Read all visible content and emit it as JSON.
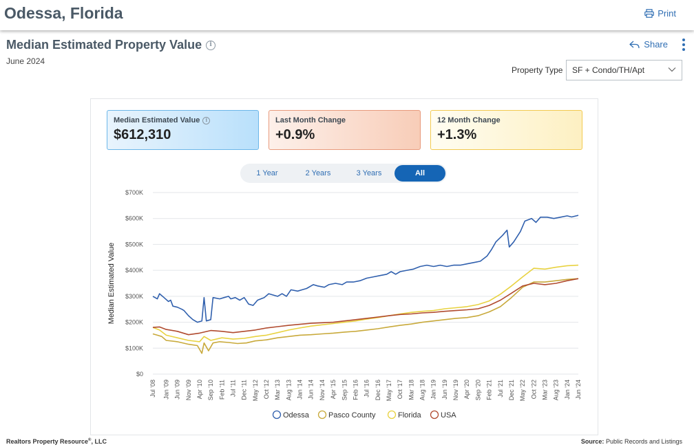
{
  "header": {
    "city": "Odessa, Florida",
    "print_label": "Print"
  },
  "card": {
    "title": "Median Estimated Property Value",
    "date": "June 2024",
    "share_label": "Share",
    "property_type_label": "Property Type",
    "property_type_value": "SF + Condo/TH/Apt"
  },
  "stats": [
    {
      "label": "Median Estimated Value",
      "value": "$612,310"
    },
    {
      "label": "Last Month Change",
      "value": "+0.9%"
    },
    {
      "label": "12 Month Change",
      "value": "+1.3%"
    }
  ],
  "ranges": [
    {
      "label": "1 Year",
      "active": false
    },
    {
      "label": "2 Years",
      "active": false
    },
    {
      "label": "3 Years",
      "active": false
    },
    {
      "label": "All",
      "active": true
    }
  ],
  "footer": {
    "left": "Realtors Property Resource",
    "left_suffix": ", LLC",
    "right_label": "Source:",
    "right_value": "Public Records and Listings"
  },
  "chart_data": {
    "type": "line",
    "ylabel": "Median Estimated Value",
    "ylim": [
      0,
      700000
    ],
    "yticks": [
      0,
      100000,
      200000,
      300000,
      400000,
      500000,
      600000,
      700000
    ],
    "ytick_labels": [
      "$0",
      "$100K",
      "$200K",
      "$300K",
      "$400K",
      "$500K",
      "$600K",
      "$700K"
    ],
    "xlim": [
      "2008-07",
      "2024-06"
    ],
    "xticks": [
      "2008-07",
      "2009-01",
      "2009-06",
      "2009-11",
      "2010-04",
      "2010-09",
      "2011-02",
      "2011-07",
      "2011-12",
      "2012-05",
      "2012-10",
      "2013-03",
      "2013-08",
      "2014-01",
      "2014-06",
      "2014-11",
      "2015-04",
      "2015-09",
      "2016-02",
      "2016-07",
      "2016-12",
      "2017-05",
      "2017-10",
      "2018-03",
      "2018-08",
      "2019-01",
      "2019-06",
      "2019-11",
      "2020-04",
      "2020-09",
      "2021-02",
      "2021-07",
      "2021-12",
      "2022-05",
      "2022-10",
      "2023-03",
      "2023-08",
      "2024-01",
      "2024-06"
    ],
    "xtick_labels": [
      "Jul '08",
      "Jan '09",
      "Jun '09",
      "Nov '09",
      "Apr '10",
      "Sep '10",
      "Feb '11",
      "Jul '11",
      "Dec '11",
      "May '12",
      "Oct '12",
      "Mar '13",
      "Aug '13",
      "Jan '14",
      "Jun '14",
      "Nov '14",
      "Apr '15",
      "Sep '15",
      "Feb '16",
      "Jul '16",
      "Dec '16",
      "May '17",
      "Oct '17",
      "Mar '18",
      "Aug '18",
      "Jan '19",
      "Jun '19",
      "Nov '19",
      "Apr '20",
      "Sep '20",
      "Feb '21",
      "Jul '21",
      "Dec '21",
      "May '22",
      "Oct '22",
      "Mar '23",
      "Aug '23",
      "Jan '24",
      "Jun '24"
    ],
    "grid": true,
    "legend_position": "bottom",
    "series": [
      {
        "name": "Odessa",
        "color": "#2f5fad",
        "points": [
          [
            "2008-07",
            300000
          ],
          [
            "2008-09",
            290000
          ],
          [
            "2008-10",
            310000
          ],
          [
            "2008-12",
            295000
          ],
          [
            "2009-02",
            280000
          ],
          [
            "2009-03",
            285000
          ],
          [
            "2009-04",
            262000
          ],
          [
            "2009-06",
            258000
          ],
          [
            "2009-08",
            250000
          ],
          [
            "2009-09",
            245000
          ],
          [
            "2009-11",
            225000
          ],
          [
            "2010-01",
            210000
          ],
          [
            "2010-03",
            200000
          ],
          [
            "2010-05",
            205000
          ],
          [
            "2010-06",
            295000
          ],
          [
            "2010-07",
            205000
          ],
          [
            "2010-09",
            210000
          ],
          [
            "2010-10",
            295000
          ],
          [
            "2011-01",
            290000
          ],
          [
            "2011-03",
            295000
          ],
          [
            "2011-05",
            300000
          ],
          [
            "2011-06",
            290000
          ],
          [
            "2011-08",
            295000
          ],
          [
            "2011-10",
            285000
          ],
          [
            "2011-12",
            295000
          ],
          [
            "2012-02",
            270000
          ],
          [
            "2012-04",
            265000
          ],
          [
            "2012-06",
            285000
          ],
          [
            "2012-09",
            295000
          ],
          [
            "2012-11",
            310000
          ],
          [
            "2013-01",
            305000
          ],
          [
            "2013-03",
            300000
          ],
          [
            "2013-05",
            310000
          ],
          [
            "2013-07",
            300000
          ],
          [
            "2013-09",
            325000
          ],
          [
            "2013-12",
            320000
          ],
          [
            "2014-02",
            325000
          ],
          [
            "2014-04",
            330000
          ],
          [
            "2014-07",
            345000
          ],
          [
            "2014-09",
            340000
          ],
          [
            "2014-12",
            335000
          ],
          [
            "2015-02",
            345000
          ],
          [
            "2015-05",
            350000
          ],
          [
            "2015-08",
            345000
          ],
          [
            "2015-10",
            355000
          ],
          [
            "2016-01",
            355000
          ],
          [
            "2016-04",
            360000
          ],
          [
            "2016-07",
            370000
          ],
          [
            "2016-10",
            375000
          ],
          [
            "2017-01",
            380000
          ],
          [
            "2017-04",
            385000
          ],
          [
            "2017-06",
            395000
          ],
          [
            "2017-08",
            385000
          ],
          [
            "2017-10",
            395000
          ],
          [
            "2018-01",
            400000
          ],
          [
            "2018-04",
            405000
          ],
          [
            "2018-07",
            415000
          ],
          [
            "2018-10",
            420000
          ],
          [
            "2019-01",
            415000
          ],
          [
            "2019-04",
            420000
          ],
          [
            "2019-07",
            415000
          ],
          [
            "2019-10",
            420000
          ],
          [
            "2020-01",
            420000
          ],
          [
            "2020-04",
            425000
          ],
          [
            "2020-07",
            430000
          ],
          [
            "2020-10",
            435000
          ],
          [
            "2021-01",
            455000
          ],
          [
            "2021-03",
            480000
          ],
          [
            "2021-05",
            510000
          ],
          [
            "2021-08",
            535000
          ],
          [
            "2021-10",
            555000
          ],
          [
            "2021-11",
            490000
          ],
          [
            "2022-01",
            510000
          ],
          [
            "2022-04",
            550000
          ],
          [
            "2022-06",
            590000
          ],
          [
            "2022-09",
            600000
          ],
          [
            "2022-11",
            585000
          ],
          [
            "2023-01",
            605000
          ],
          [
            "2023-04",
            605000
          ],
          [
            "2023-07",
            600000
          ],
          [
            "2023-10",
            605000
          ],
          [
            "2024-01",
            610000
          ],
          [
            "2024-03",
            606000
          ],
          [
            "2024-06",
            612310
          ]
        ]
      },
      {
        "name": "Pasco County",
        "color": "#c8a93a",
        "points": [
          [
            "2008-07",
            155000
          ],
          [
            "2008-09",
            150000
          ],
          [
            "2008-11",
            145000
          ],
          [
            "2009-01",
            130000
          ],
          [
            "2009-06",
            125000
          ],
          [
            "2009-11",
            115000
          ],
          [
            "2010-03",
            110000
          ],
          [
            "2010-05",
            80000
          ],
          [
            "2010-06",
            120000
          ],
          [
            "2010-08",
            90000
          ],
          [
            "2010-10",
            120000
          ],
          [
            "2011-01",
            125000
          ],
          [
            "2011-05",
            122000
          ],
          [
            "2011-09",
            118000
          ],
          [
            "2012-01",
            120000
          ],
          [
            "2012-05",
            128000
          ],
          [
            "2012-10",
            132000
          ],
          [
            "2013-03",
            140000
          ],
          [
            "2013-08",
            145000
          ],
          [
            "2014-01",
            150000
          ],
          [
            "2014-06",
            152000
          ],
          [
            "2014-11",
            155000
          ],
          [
            "2015-04",
            158000
          ],
          [
            "2015-09",
            162000
          ],
          [
            "2016-02",
            165000
          ],
          [
            "2016-07",
            170000
          ],
          [
            "2016-12",
            175000
          ],
          [
            "2017-05",
            182000
          ],
          [
            "2017-10",
            188000
          ],
          [
            "2018-03",
            193000
          ],
          [
            "2018-08",
            200000
          ],
          [
            "2019-01",
            205000
          ],
          [
            "2019-06",
            210000
          ],
          [
            "2019-11",
            215000
          ],
          [
            "2020-04",
            218000
          ],
          [
            "2020-09",
            225000
          ],
          [
            "2021-02",
            240000
          ],
          [
            "2021-07",
            260000
          ],
          [
            "2021-12",
            295000
          ],
          [
            "2022-05",
            335000
          ],
          [
            "2022-10",
            355000
          ],
          [
            "2023-03",
            355000
          ],
          [
            "2023-08",
            360000
          ],
          [
            "2024-01",
            365000
          ],
          [
            "2024-06",
            368000
          ]
        ]
      },
      {
        "name": "Florida",
        "color": "#e8d240",
        "points": [
          [
            "2008-07",
            180000
          ],
          [
            "2008-10",
            170000
          ],
          [
            "2009-01",
            150000
          ],
          [
            "2009-06",
            140000
          ],
          [
            "2009-11",
            130000
          ],
          [
            "2010-04",
            125000
          ],
          [
            "2010-06",
            145000
          ],
          [
            "2010-09",
            130000
          ],
          [
            "2011-02",
            140000
          ],
          [
            "2011-07",
            135000
          ],
          [
            "2011-12",
            138000
          ],
          [
            "2012-05",
            145000
          ],
          [
            "2012-10",
            150000
          ],
          [
            "2013-03",
            160000
          ],
          [
            "2013-08",
            170000
          ],
          [
            "2014-01",
            178000
          ],
          [
            "2014-06",
            185000
          ],
          [
            "2014-11",
            190000
          ],
          [
            "2015-04",
            195000
          ],
          [
            "2015-09",
            200000
          ],
          [
            "2016-02",
            205000
          ],
          [
            "2016-07",
            212000
          ],
          [
            "2016-12",
            218000
          ],
          [
            "2017-05",
            225000
          ],
          [
            "2017-10",
            232000
          ],
          [
            "2018-03",
            238000
          ],
          [
            "2018-08",
            242000
          ],
          [
            "2019-01",
            245000
          ],
          [
            "2019-06",
            252000
          ],
          [
            "2019-11",
            256000
          ],
          [
            "2020-04",
            260000
          ],
          [
            "2020-09",
            268000
          ],
          [
            "2021-02",
            282000
          ],
          [
            "2021-07",
            308000
          ],
          [
            "2021-12",
            340000
          ],
          [
            "2022-05",
            375000
          ],
          [
            "2022-10",
            408000
          ],
          [
            "2023-03",
            405000
          ],
          [
            "2023-08",
            412000
          ],
          [
            "2024-01",
            418000
          ],
          [
            "2024-06",
            420000
          ]
        ]
      },
      {
        "name": "USA",
        "color": "#b04a2e",
        "points": [
          [
            "2008-07",
            180000
          ],
          [
            "2008-10",
            182000
          ],
          [
            "2009-01",
            172000
          ],
          [
            "2009-06",
            165000
          ],
          [
            "2009-11",
            152000
          ],
          [
            "2010-04",
            158000
          ],
          [
            "2010-09",
            168000
          ],
          [
            "2011-02",
            165000
          ],
          [
            "2011-07",
            160000
          ],
          [
            "2011-12",
            165000
          ],
          [
            "2012-05",
            170000
          ],
          [
            "2012-10",
            178000
          ],
          [
            "2013-03",
            183000
          ],
          [
            "2013-08",
            188000
          ],
          [
            "2014-01",
            192000
          ],
          [
            "2014-06",
            196000
          ],
          [
            "2014-11",
            198000
          ],
          [
            "2015-04",
            200000
          ],
          [
            "2015-09",
            205000
          ],
          [
            "2016-02",
            210000
          ],
          [
            "2016-07",
            215000
          ],
          [
            "2016-12",
            220000
          ],
          [
            "2017-05",
            225000
          ],
          [
            "2017-10",
            230000
          ],
          [
            "2018-03",
            232000
          ],
          [
            "2018-08",
            236000
          ],
          [
            "2019-01",
            238000
          ],
          [
            "2019-06",
            242000
          ],
          [
            "2019-11",
            245000
          ],
          [
            "2020-04",
            248000
          ],
          [
            "2020-09",
            252000
          ],
          [
            "2021-02",
            265000
          ],
          [
            "2021-07",
            285000
          ],
          [
            "2021-12",
            312000
          ],
          [
            "2022-05",
            340000
          ],
          [
            "2022-10",
            350000
          ],
          [
            "2023-03",
            345000
          ],
          [
            "2023-08",
            350000
          ],
          [
            "2024-01",
            360000
          ],
          [
            "2024-06",
            368000
          ]
        ]
      }
    ]
  }
}
